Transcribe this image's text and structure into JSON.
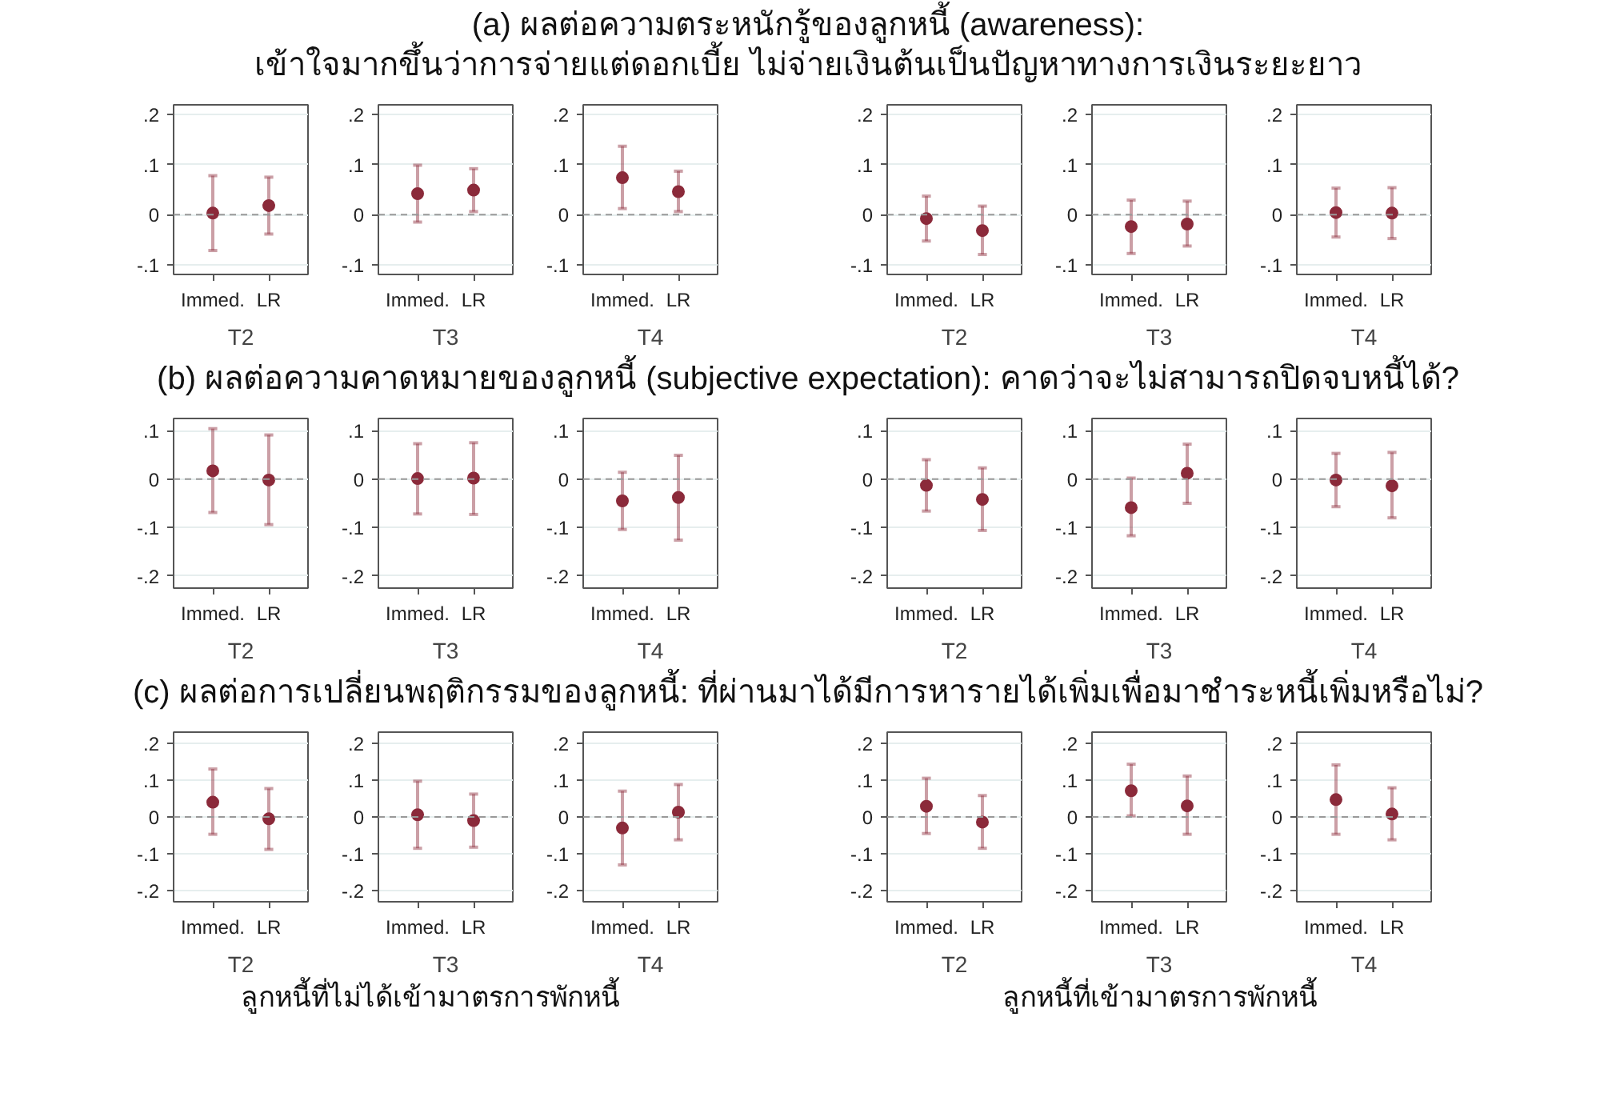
{
  "chart_data": [
    {
      "type": "scatter",
      "title": "(a) ผลต่อความตระหนักรู้ของลูกหนี้ (awareness):\nเข้าใจมากขึ้นว่าการจ่ายแต่ดอกเบี้ย ไม่จ่ายเงินต้นเป็นปัญหาทางการเงินระยะยาว",
      "xlabel": "T2",
      "categories": [
        "Immed.",
        "LR"
      ],
      "series": [
        {
          "color": "#8b2a3a",
          "values": [
            0.003,
            0.018
          ],
          "errors": [
            [
              -0.072,
              0.078
            ],
            [
              -0.039,
              0.075
            ]
          ]
        }
      ],
      "ylim": [
        -0.12,
        0.22
      ],
      "yticks": [
        {
          "value": -0.1,
          "label": "-.1"
        },
        0,
        {
          "value": 0.1,
          "label": ".1"
        },
        {
          "value": 0.2,
          "label": ".2"
        }
      ],
      "ref_lines": [
        {
          "axis": "y",
          "value": 0,
          "color": "#999999",
          "line_style": "dashed"
        }
      ],
      "grid": "y",
      "marker": "circle"
    },
    {
      "type": "scatter",
      "xlabel": "T3",
      "categories": [
        "Immed.",
        "LR"
      ],
      "series": [
        {
          "color": "#8b2a3a",
          "values": [
            0.042,
            0.049
          ],
          "errors": [
            [
              -0.015,
              0.099
            ],
            [
              0.006,
              0.092
            ]
          ]
        }
      ],
      "ylim": [
        -0.12,
        0.22
      ],
      "yticks": [
        {
          "value": -0.1,
          "label": "-.1"
        },
        0,
        {
          "value": 0.1,
          "label": ".1"
        },
        {
          "value": 0.2,
          "label": ".2"
        }
      ],
      "ref_lines": [
        {
          "axis": "y",
          "value": 0,
          "color": "#999999",
          "line_style": "dashed"
        }
      ],
      "grid": "y",
      "marker": "circle"
    },
    {
      "type": "scatter",
      "xlabel": "T4",
      "categories": [
        "Immed.",
        "LR"
      ],
      "series": [
        {
          "color": "#8b2a3a",
          "values": [
            0.074,
            0.046
          ],
          "errors": [
            [
              0.012,
              0.137
            ],
            [
              0.006,
              0.087
            ]
          ]
        }
      ],
      "ylim": [
        -0.12,
        0.22
      ],
      "yticks": [
        {
          "value": -0.1,
          "label": "-.1"
        },
        0,
        {
          "value": 0.1,
          "label": ".1"
        },
        {
          "value": 0.2,
          "label": ".2"
        }
      ],
      "ref_lines": [
        {
          "axis": "y",
          "value": 0,
          "color": "#999999",
          "line_style": "dashed"
        }
      ],
      "grid": "y",
      "marker": "circle"
    },
    {
      "type": "scatter",
      "xlabel": "T2",
      "categories": [
        "Immed.",
        "LR"
      ],
      "series": [
        {
          "color": "#8b2a3a",
          "values": [
            -0.008,
            -0.032
          ],
          "errors": [
            [
              -0.053,
              0.037
            ],
            [
              -0.08,
              0.017
            ]
          ]
        }
      ],
      "ylim": [
        -0.12,
        0.22
      ],
      "yticks": [
        {
          "value": -0.1,
          "label": "-.1"
        },
        0,
        {
          "value": 0.1,
          "label": ".1"
        },
        {
          "value": 0.2,
          "label": ".2"
        }
      ],
      "ref_lines": [
        {
          "axis": "y",
          "value": 0,
          "color": "#999999",
          "line_style": "dashed"
        }
      ],
      "grid": "y",
      "marker": "circle"
    },
    {
      "type": "scatter",
      "xlabel": "T3",
      "categories": [
        "Immed.",
        "LR"
      ],
      "series": [
        {
          "color": "#8b2a3a",
          "values": [
            -0.024,
            -0.019
          ],
          "errors": [
            [
              -0.078,
              0.029
            ],
            [
              -0.063,
              0.027
            ]
          ]
        }
      ],
      "ylim": [
        -0.12,
        0.22
      ],
      "yticks": [
        {
          "value": -0.1,
          "label": "-.1"
        },
        0,
        {
          "value": 0.1,
          "label": ".1"
        },
        {
          "value": 0.2,
          "label": ".2"
        }
      ],
      "ref_lines": [
        {
          "axis": "y",
          "value": 0,
          "color": "#999999",
          "line_style": "dashed"
        }
      ],
      "grid": "y",
      "marker": "circle"
    },
    {
      "type": "scatter",
      "xlabel": "T4",
      "categories": [
        "Immed.",
        "LR"
      ],
      "series": [
        {
          "color": "#8b2a3a",
          "values": [
            0.004,
            0.003
          ],
          "errors": [
            [
              -0.045,
              0.053
            ],
            [
              -0.048,
              0.054
            ]
          ]
        }
      ],
      "ylim": [
        -0.12,
        0.22
      ],
      "yticks": [
        {
          "value": -0.1,
          "label": "-.1"
        },
        0,
        {
          "value": 0.1,
          "label": ".1"
        },
        {
          "value": 0.2,
          "label": ".2"
        }
      ],
      "ref_lines": [
        {
          "axis": "y",
          "value": 0,
          "color": "#999999",
          "line_style": "dashed"
        }
      ],
      "grid": "y",
      "marker": "circle"
    },
    {
      "type": "scatter",
      "title": "(b) ผลต่อความคาดหมายของลูกหนี้ (subjective expectation): คาดว่าจะไม่สามารถปิดจบหนี้ได้?",
      "xlabel": "T2",
      "categories": [
        "Immed.",
        "LR"
      ],
      "series": [
        {
          "color": "#8b2a3a",
          "values": [
            0.017,
            -0.002
          ],
          "errors": [
            [
              -0.069,
              0.104
            ],
            [
              -0.094,
              0.091
            ]
          ]
        }
      ],
      "ylim": [
        -0.225,
        0.125
      ],
      "yticks": [
        {
          "value": -0.2,
          "label": "-.2"
        },
        {
          "value": -0.1,
          "label": "-.1"
        },
        0,
        {
          "value": 0.1,
          "label": ".1"
        }
      ],
      "ref_lines": [
        {
          "axis": "y",
          "value": 0,
          "color": "#999999",
          "line_style": "dashed"
        }
      ],
      "grid": "y",
      "marker": "circle"
    },
    {
      "type": "scatter",
      "xlabel": "T3",
      "categories": [
        "Immed.",
        "LR"
      ],
      "series": [
        {
          "color": "#8b2a3a",
          "values": [
            0.001,
            0.002
          ],
          "errors": [
            [
              -0.072,
              0.073
            ],
            [
              -0.073,
              0.075
            ]
          ]
        }
      ],
      "ylim": [
        -0.225,
        0.125
      ],
      "yticks": [
        {
          "value": -0.2,
          "label": "-.2"
        },
        {
          "value": -0.1,
          "label": "-.1"
        },
        0,
        {
          "value": 0.1,
          "label": ".1"
        }
      ],
      "ref_lines": [
        {
          "axis": "y",
          "value": 0,
          "color": "#999999",
          "line_style": "dashed"
        }
      ],
      "grid": "y",
      "marker": "circle"
    },
    {
      "type": "scatter",
      "xlabel": "T4",
      "categories": [
        "Immed.",
        "LR"
      ],
      "series": [
        {
          "color": "#8b2a3a",
          "values": [
            -0.045,
            -0.038
          ],
          "errors": [
            [
              -0.104,
              0.014
            ],
            [
              -0.126,
              0.049
            ]
          ]
        }
      ],
      "ylim": [
        -0.225,
        0.125
      ],
      "yticks": [
        {
          "value": -0.2,
          "label": "-.2"
        },
        {
          "value": -0.1,
          "label": "-.1"
        },
        0,
        {
          "value": 0.1,
          "label": ".1"
        }
      ],
      "ref_lines": [
        {
          "axis": "y",
          "value": 0,
          "color": "#999999",
          "line_style": "dashed"
        }
      ],
      "grid": "y",
      "marker": "circle"
    },
    {
      "type": "scatter",
      "xlabel": "T2",
      "categories": [
        "Immed.",
        "LR"
      ],
      "series": [
        {
          "color": "#8b2a3a",
          "values": [
            -0.013,
            -0.042
          ],
          "errors": [
            [
              -0.066,
              0.04
            ],
            [
              -0.106,
              0.023
            ]
          ]
        }
      ],
      "ylim": [
        -0.225,
        0.125
      ],
      "yticks": [
        {
          "value": -0.2,
          "label": "-.2"
        },
        {
          "value": -0.1,
          "label": "-.1"
        },
        0,
        {
          "value": 0.1,
          "label": ".1"
        }
      ],
      "ref_lines": [
        {
          "axis": "y",
          "value": 0,
          "color": "#999999",
          "line_style": "dashed"
        }
      ],
      "grid": "y",
      "marker": "circle"
    },
    {
      "type": "scatter",
      "xlabel": "T3",
      "categories": [
        "Immed.",
        "LR"
      ],
      "series": [
        {
          "color": "#8b2a3a",
          "values": [
            -0.059,
            0.012
          ],
          "errors": [
            [
              -0.117,
              0.002
            ],
            [
              -0.05,
              0.072
            ]
          ]
        }
      ],
      "ylim": [
        -0.225,
        0.125
      ],
      "yticks": [
        {
          "value": -0.2,
          "label": "-.2"
        },
        {
          "value": -0.1,
          "label": "-.1"
        },
        0,
        {
          "value": 0.1,
          "label": ".1"
        }
      ],
      "ref_lines": [
        {
          "axis": "y",
          "value": 0,
          "color": "#999999",
          "line_style": "dashed"
        }
      ],
      "grid": "y",
      "marker": "circle"
    },
    {
      "type": "scatter",
      "xlabel": "T4",
      "categories": [
        "Immed.",
        "LR"
      ],
      "series": [
        {
          "color": "#8b2a3a",
          "values": [
            -0.002,
            -0.014
          ],
          "errors": [
            [
              -0.057,
              0.053
            ],
            [
              -0.08,
              0.055
            ]
          ]
        }
      ],
      "ylim": [
        -0.225,
        0.125
      ],
      "yticks": [
        {
          "value": -0.2,
          "label": "-.2"
        },
        {
          "value": -0.1,
          "label": "-.1"
        },
        0,
        {
          "value": 0.1,
          "label": ".1"
        }
      ],
      "ref_lines": [
        {
          "axis": "y",
          "value": 0,
          "color": "#999999",
          "line_style": "dashed"
        }
      ],
      "grid": "y",
      "marker": "circle"
    },
    {
      "type": "scatter",
      "title": "(c) ผลต่อการเปลี่ยนพฤติกรรมของลูกหนี้: ที่ผ่านมาได้มีการหารายได้เพิ่มเพื่อมาชำระหนี้เพิ่มหรือไม่?",
      "annotations": [
        "ลูกหนี้ที่ไม่ได้เข้ามาตรการพักหนี้"
      ],
      "xlabel": "T2",
      "categories": [
        "Immed.",
        "LR"
      ],
      "series": [
        {
          "color": "#8b2a3a",
          "values": [
            0.04,
            -0.005
          ],
          "errors": [
            [
              -0.047,
              0.13
            ],
            [
              -0.088,
              0.077
            ]
          ]
        }
      ],
      "ylim": [
        -0.23,
        0.23
      ],
      "yticks": [
        {
          "value": -0.2,
          "label": "-.2"
        },
        {
          "value": -0.1,
          "label": "-.1"
        },
        0,
        {
          "value": 0.1,
          "label": ".1"
        },
        {
          "value": 0.2,
          "label": ".2"
        }
      ],
      "ref_lines": [
        {
          "axis": "y",
          "value": 0,
          "color": "#999999",
          "line_style": "dashed"
        }
      ],
      "grid": "y",
      "marker": "circle"
    },
    {
      "type": "scatter",
      "xlabel": "T3",
      "categories": [
        "Immed.",
        "LR"
      ],
      "series": [
        {
          "color": "#8b2a3a",
          "values": [
            0.006,
            -0.01
          ],
          "errors": [
            [
              -0.085,
              0.097
            ],
            [
              -0.082,
              0.062
            ]
          ]
        }
      ],
      "ylim": [
        -0.23,
        0.23
      ],
      "yticks": [
        {
          "value": -0.2,
          "label": "-.2"
        },
        {
          "value": -0.1,
          "label": "-.1"
        },
        0,
        {
          "value": 0.1,
          "label": ".1"
        },
        {
          "value": 0.2,
          "label": ".2"
        }
      ],
      "ref_lines": [
        {
          "axis": "y",
          "value": 0,
          "color": "#999999",
          "line_style": "dashed"
        }
      ],
      "grid": "y",
      "marker": "circle"
    },
    {
      "type": "scatter",
      "xlabel": "T4",
      "categories": [
        "Immed.",
        "LR"
      ],
      "series": [
        {
          "color": "#8b2a3a",
          "values": [
            -0.03,
            0.013
          ],
          "errors": [
            [
              -0.13,
              0.07
            ],
            [
              -0.062,
              0.088
            ]
          ]
        }
      ],
      "ylim": [
        -0.23,
        0.23
      ],
      "yticks": [
        {
          "value": -0.2,
          "label": "-.2"
        },
        {
          "value": -0.1,
          "label": "-.1"
        },
        0,
        {
          "value": 0.1,
          "label": ".1"
        },
        {
          "value": 0.2,
          "label": ".2"
        }
      ],
      "ref_lines": [
        {
          "axis": "y",
          "value": 0,
          "color": "#999999",
          "line_style": "dashed"
        }
      ],
      "grid": "y",
      "marker": "circle"
    },
    {
      "type": "scatter",
      "annotations": [
        "ลูกหนี้ที่เข้ามาตรการพักหนี้"
      ],
      "xlabel": "T2",
      "categories": [
        "Immed.",
        "LR"
      ],
      "series": [
        {
          "color": "#8b2a3a",
          "values": [
            0.029,
            -0.014
          ],
          "errors": [
            [
              -0.045,
              0.105
            ],
            [
              -0.085,
              0.058
            ]
          ]
        }
      ],
      "ylim": [
        -0.23,
        0.23
      ],
      "yticks": [
        {
          "value": -0.2,
          "label": "-.2"
        },
        {
          "value": -0.1,
          "label": "-.1"
        },
        0,
        {
          "value": 0.1,
          "label": ".1"
        },
        {
          "value": 0.2,
          "label": ".2"
        }
      ],
      "ref_lines": [
        {
          "axis": "y",
          "value": 0,
          "color": "#999999",
          "line_style": "dashed"
        }
      ],
      "grid": "y",
      "marker": "circle"
    },
    {
      "type": "scatter",
      "xlabel": "T3",
      "categories": [
        "Immed.",
        "LR"
      ],
      "series": [
        {
          "color": "#8b2a3a",
          "values": [
            0.071,
            0.03
          ],
          "errors": [
            [
              0.003,
              0.143
            ],
            [
              -0.047,
              0.111
            ]
          ]
        }
      ],
      "ylim": [
        -0.23,
        0.23
      ],
      "yticks": [
        {
          "value": -0.2,
          "label": "-.2"
        },
        {
          "value": -0.1,
          "label": "-.1"
        },
        0,
        {
          "value": 0.1,
          "label": ".1"
        },
        {
          "value": 0.2,
          "label": ".2"
        }
      ],
      "ref_lines": [
        {
          "axis": "y",
          "value": 0,
          "color": "#999999",
          "line_style": "dashed"
        }
      ],
      "grid": "y",
      "marker": "circle"
    },
    {
      "type": "scatter",
      "xlabel": "T4",
      "categories": [
        "Immed.",
        "LR"
      ],
      "series": [
        {
          "color": "#8b2a3a",
          "values": [
            0.047,
            0.008
          ],
          "errors": [
            [
              -0.047,
              0.141
            ],
            [
              -0.062,
              0.079
            ]
          ]
        }
      ],
      "ylim": [
        -0.23,
        0.23
      ],
      "yticks": [
        {
          "value": -0.2,
          "label": "-.2"
        },
        {
          "value": -0.1,
          "label": "-.1"
        },
        0,
        {
          "value": 0.1,
          "label": ".1"
        },
        {
          "value": 0.2,
          "label": ".2"
        }
      ],
      "ref_lines": [
        {
          "axis": "y",
          "value": 0,
          "color": "#999999",
          "line_style": "dashed"
        }
      ],
      "grid": "y",
      "marker": "circle"
    }
  ]
}
